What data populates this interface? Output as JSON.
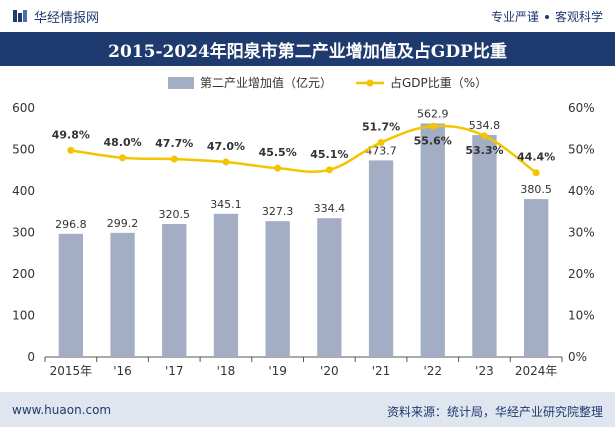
{
  "header": {
    "brand": "华经情报网",
    "slogan_left": "专业严谨",
    "slogan_right": "客观科学"
  },
  "colors": {
    "bar": "#a3adc3",
    "line": "#f5c400",
    "title_bg": "#1f3a6e",
    "footer_bg": "#dfe6ef"
  },
  "chart_data": {
    "type": "bar",
    "title": "2015-2024年阳泉市第二产业增加值及占GDP比重",
    "categories": [
      "2015年",
      "'16",
      "'17",
      "'18",
      "'19",
      "'20",
      "'21",
      "'22",
      "'23",
      "2024年"
    ],
    "series": [
      {
        "name": "第二产业增加值（亿元）",
        "type": "bar",
        "axis": "left",
        "values": [
          296.8,
          299.2,
          320.5,
          345.1,
          327.3,
          334.4,
          473.7,
          562.9,
          534.8,
          380.5
        ],
        "labels": [
          "296.8",
          "299.2",
          "320.5",
          "345.1",
          "327.3",
          "334.4",
          "473.7",
          "562.9",
          "534.8",
          "380.5"
        ]
      },
      {
        "name": "占GDP比重（%）",
        "type": "line",
        "axis": "right",
        "values": [
          49.8,
          48.0,
          47.7,
          47.0,
          45.5,
          45.1,
          51.7,
          55.6,
          53.3,
          44.4
        ],
        "labels": [
          "49.8%",
          "48.0%",
          "47.7%",
          "47.0%",
          "45.5%",
          "45.1%",
          "51.7%",
          "55.6%",
          "53.3%",
          "44.4%"
        ]
      }
    ],
    "y_left": {
      "min": 0,
      "max": 600,
      "ticks": [
        "0",
        "100",
        "200",
        "300",
        "400",
        "500",
        "600"
      ]
    },
    "y_right": {
      "min": 0,
      "max": 60,
      "ticks": [
        "0%",
        "10%",
        "20%",
        "30%",
        "40%",
        "50%",
        "60%"
      ]
    },
    "legend_position": "top-center",
    "grid": false
  },
  "footer": {
    "website": "www.huaon.com",
    "source": "资料来源：统计局，华经产业研究院整理"
  }
}
